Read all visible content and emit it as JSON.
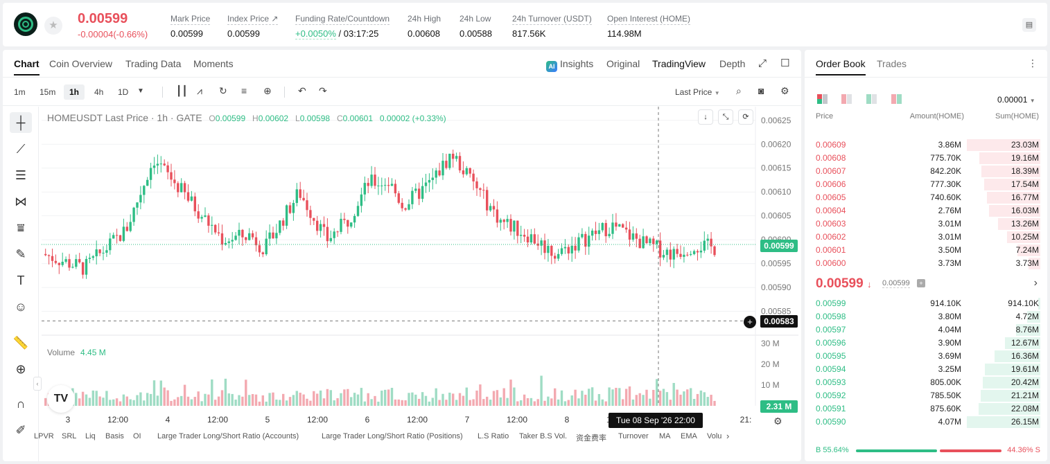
{
  "header": {
    "last_price": "0.00599",
    "change": "-0.00004(-0.66%)",
    "stats": [
      {
        "label": "Mark Price",
        "value": "0.00599"
      },
      {
        "label": "Index Price ↗",
        "value": "0.00599"
      },
      {
        "label": "Funding Rate/Countdown",
        "value_green": "+0.0050%",
        "value": "/ 03:17:25"
      },
      {
        "label": "24h High",
        "value": "0.00608"
      },
      {
        "label": "24h Low",
        "value": "0.00588"
      },
      {
        "label": "24h Turnover (USDT)",
        "value": "817.56K"
      },
      {
        "label": "Open Interest (HOME)",
        "value": "114.98M"
      }
    ]
  },
  "chart_tabs": {
    "left": [
      "Chart",
      "Coin Overview",
      "Trading Data",
      "Moments"
    ],
    "right": [
      "Insights",
      "Original",
      "TradingView",
      "Depth"
    ],
    "ai_badge": "AI"
  },
  "toolbar": {
    "timeframes": [
      "1m",
      "15m",
      "1h",
      "4h",
      "1D"
    ],
    "active_timeframe": "1h",
    "price_type": "Last Price"
  },
  "legend": {
    "symbol": "HOMEUSDT Last Price · 1h · GATE",
    "o_label": "O",
    "o": "0.00599",
    "h_label": "H",
    "h": "0.00602",
    "l_label": "L",
    "l": "0.00598",
    "c_label": "C",
    "c": "0.00601",
    "chg": "0.00002 (+0.33%)",
    "volume_label": "Volume",
    "volume_value": "4.45 M"
  },
  "price_tags": {
    "current": "0.00599",
    "crosshair": "0.00583",
    "volume_current": "2.31 M"
  },
  "crosshair_time": "Tue 08 Sep '26   22:00",
  "chart_data": {
    "type": "candlestick",
    "y_ticks": [
      "0.00625",
      "0.00620",
      "0.00615",
      "0.00610",
      "0.00605",
      "0.00600",
      "0.00595",
      "0.00590",
      "0.00585"
    ],
    "y_tick_values": [
      0.00625,
      0.0062,
      0.00615,
      0.0061,
      0.00605,
      0.006,
      0.00595,
      0.0059,
      0.00585
    ],
    "volume_ticks": [
      "30 M",
      "20 M",
      "10 M"
    ],
    "volume_tick_values": [
      30,
      20,
      10
    ],
    "x_ticks": [
      "3",
      "12:00",
      "4",
      "12:00",
      "5",
      "12:00",
      "6",
      "12:00",
      "7",
      "12:00",
      "8",
      "12:00",
      "21:"
    ],
    "ylim": [
      0.0058,
      0.00627
    ],
    "volume_ylim": [
      0,
      34
    ]
  },
  "bottom_indicators": [
    "LPVR",
    "SRL",
    "Liq",
    "Basis",
    "OI",
    "Large Trader Long/Short Ratio (Accounts)",
    "Large Trader Long/Short Ratio (Positions)",
    "L.S Ratio",
    "Taker B.S Vol.",
    "资金费率",
    "Turnover",
    "MA",
    "EMA",
    "Volu"
  ],
  "order_book": {
    "tabs": [
      "Order Book",
      "Trades"
    ],
    "precision": "0.00001",
    "headers": [
      "Price",
      "Amount(HOME)",
      "Sum(HOME)"
    ],
    "asks": [
      {
        "price": "0.00609",
        "amount": "3.86M",
        "sum": "23.03M",
        "depth": 1.0
      },
      {
        "price": "0.00608",
        "amount": "775.70K",
        "sum": "19.16M",
        "depth": 0.83
      },
      {
        "price": "0.00607",
        "amount": "842.20K",
        "sum": "18.39M",
        "depth": 0.8
      },
      {
        "price": "0.00606",
        "amount": "777.30K",
        "sum": "17.54M",
        "depth": 0.76
      },
      {
        "price": "0.00605",
        "amount": "740.60K",
        "sum": "16.77M",
        "depth": 0.73
      },
      {
        "price": "0.00604",
        "amount": "2.76M",
        "sum": "16.03M",
        "depth": 0.7
      },
      {
        "price": "0.00603",
        "amount": "3.01M",
        "sum": "13.26M",
        "depth": 0.58
      },
      {
        "price": "0.00602",
        "amount": "3.01M",
        "sum": "10.25M",
        "depth": 0.45
      },
      {
        "price": "0.00601",
        "amount": "3.50M",
        "sum": "7.24M",
        "depth": 0.31
      },
      {
        "price": "0.00600",
        "amount": "3.73M",
        "sum": "3.73M",
        "depth": 0.16
      }
    ],
    "mid_price": "0.00599",
    "mid_arrow": "↓",
    "mark_price": "0.00599",
    "bids": [
      {
        "price": "0.00599",
        "amount": "914.10K",
        "sum": "914.10K",
        "depth": 0.03
      },
      {
        "price": "0.00598",
        "amount": "3.80M",
        "sum": "4.72M",
        "depth": 0.18
      },
      {
        "price": "0.00597",
        "amount": "4.04M",
        "sum": "8.76M",
        "depth": 0.33
      },
      {
        "price": "0.00596",
        "amount": "3.90M",
        "sum": "12.67M",
        "depth": 0.48
      },
      {
        "price": "0.00595",
        "amount": "3.69M",
        "sum": "16.36M",
        "depth": 0.62
      },
      {
        "price": "0.00594",
        "amount": "3.25M",
        "sum": "19.61M",
        "depth": 0.75
      },
      {
        "price": "0.00593",
        "amount": "805.00K",
        "sum": "20.42M",
        "depth": 0.78
      },
      {
        "price": "0.00592",
        "amount": "785.50K",
        "sum": "21.21M",
        "depth": 0.81
      },
      {
        "price": "0.00591",
        "amount": "875.60K",
        "sum": "22.08M",
        "depth": 0.84
      },
      {
        "price": "0.00590",
        "amount": "4.07M",
        "sum": "26.15M",
        "depth": 1.0
      }
    ],
    "ratio": {
      "buy_label": "B 55.64%",
      "sell_label": "44.36% S",
      "buy": 0.5564
    }
  },
  "colors": {
    "up": "#2ebd85",
    "down": "#e8505b",
    "up_vol": "#9fdcc4",
    "down_vol": "#f3a9b0"
  }
}
